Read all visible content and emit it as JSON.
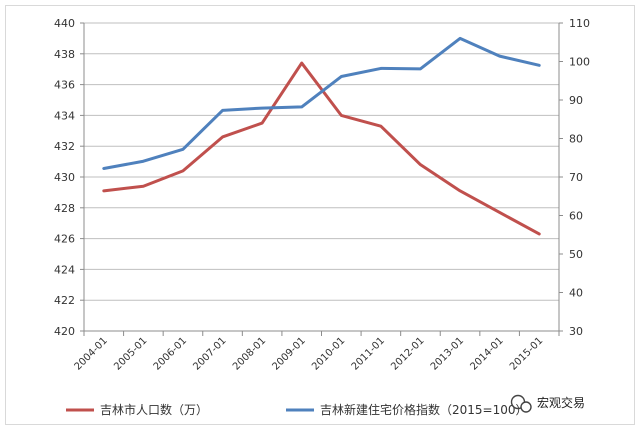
{
  "chart_data": {
    "type": "line",
    "categories": [
      "2004-01",
      "2005-01",
      "2006-01",
      "2007-01",
      "2008-01",
      "2009-01",
      "2010-01",
      "2011-01",
      "2012-01",
      "2013-01",
      "2014-01",
      "2015-01"
    ],
    "series": [
      {
        "name": "吉林市人口数（万）",
        "axis": "left",
        "color": "#c0504d",
        "values": [
          429.1,
          429.4,
          430.4,
          432.6,
          433.5,
          437.4,
          434.0,
          433.3,
          430.8,
          429.1,
          427.7,
          426.3
        ]
      },
      {
        "name": "吉林新建住宅价格指数（2015=100）",
        "axis": "right",
        "color": "#4f81bd",
        "values": [
          72.2,
          74.1,
          77.2,
          87.3,
          87.9,
          88.2,
          96.1,
          98.2,
          98.1,
          106.0,
          101.4,
          99.0
        ]
      }
    ],
    "y_left": {
      "ylim": [
        420,
        440
      ],
      "ticks": [
        420,
        422,
        424,
        426,
        428,
        430,
        432,
        434,
        436,
        438,
        440
      ]
    },
    "y_right": {
      "ylim": [
        30,
        110
      ],
      "ticks": [
        30,
        40,
        50,
        60,
        70,
        80,
        90,
        100,
        110
      ]
    },
    "grid": true,
    "legend_position": "bottom"
  },
  "watermark": {
    "text": "宏观交易",
    "icon": "wechat-icon"
  }
}
